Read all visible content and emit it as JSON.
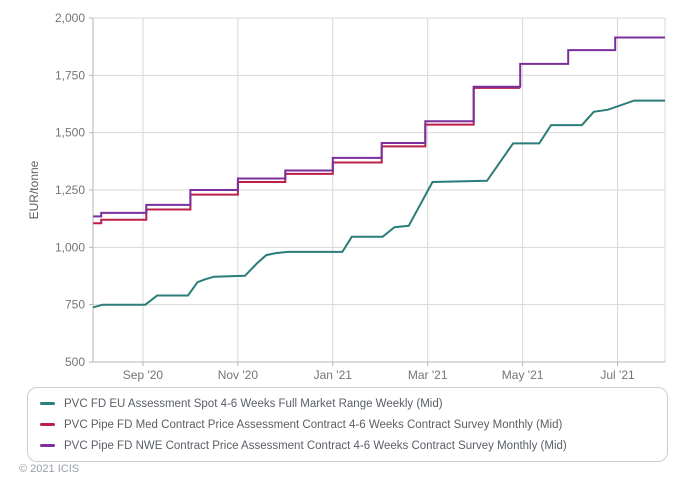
{
  "chart_data": {
    "type": "line",
    "title": "",
    "xlabel": "",
    "ylabel": "EUR/tonne",
    "ylim": [
      500,
      2000
    ],
    "x_domain": [
      -0.05,
      12
    ],
    "x_unit": "months (0 = Aug '20, 12 = Aug '21)",
    "grid": true,
    "legend_position": "bottom",
    "y_ticks": [
      {
        "v": 500,
        "label": "500"
      },
      {
        "v": 750,
        "label": "750"
      },
      {
        "v": 1000,
        "label": "1,000"
      },
      {
        "v": 1250,
        "label": "1,250"
      },
      {
        "v": 1500,
        "label": "1,500"
      },
      {
        "v": 1750,
        "label": "1,750"
      },
      {
        "v": 2000,
        "label": "2,000"
      }
    ],
    "x_ticks": [
      {
        "m": 1,
        "label": "Sep '20"
      },
      {
        "m": 3,
        "label": "Nov '20"
      },
      {
        "m": 5,
        "label": "Jan '21"
      },
      {
        "m": 7,
        "label": "Mar '21"
      },
      {
        "m": 9,
        "label": "May '21"
      },
      {
        "m": 11,
        "label": "Jul '21"
      }
    ],
    "series": [
      {
        "name": "PVC FD EU Assessment Spot 4-6 Weeks Full Market Range Weekly (Mid)",
        "color": "#2a7d78",
        "mode": "line",
        "points": [
          [
            -0.05,
            738
          ],
          [
            0.15,
            750
          ],
          [
            1.05,
            750
          ],
          [
            1.3,
            790
          ],
          [
            1.95,
            790
          ],
          [
            2.15,
            848
          ],
          [
            2.3,
            860
          ],
          [
            2.5,
            872
          ],
          [
            3.15,
            876
          ],
          [
            3.4,
            930
          ],
          [
            3.6,
            966
          ],
          [
            3.8,
            975
          ],
          [
            4.05,
            980
          ],
          [
            5.2,
            980
          ],
          [
            5.4,
            1046
          ],
          [
            6.05,
            1046
          ],
          [
            6.3,
            1088
          ],
          [
            6.6,
            1094
          ],
          [
            7.1,
            1285
          ],
          [
            8.25,
            1290
          ],
          [
            8.8,
            1453
          ],
          [
            9.35,
            1453
          ],
          [
            9.6,
            1533
          ],
          [
            10.25,
            1533
          ],
          [
            10.5,
            1591
          ],
          [
            10.8,
            1600
          ],
          [
            11.35,
            1640
          ],
          [
            12.0,
            1640
          ]
        ]
      },
      {
        "name": "PVC Pipe FD Med Contract Price Assessment Contract 4-6 Weeks Contract Survey Monthly (Mid)",
        "color": "#bb2148",
        "mode": "step",
        "points": [
          [
            -0.05,
            1105
          ],
          [
            0.12,
            1120
          ],
          [
            1.07,
            1165
          ],
          [
            2.0,
            1230
          ],
          [
            3.0,
            1285
          ],
          [
            4.0,
            1320
          ],
          [
            5.0,
            1370
          ],
          [
            6.03,
            1440
          ],
          [
            6.95,
            1535
          ],
          [
            7.97,
            1695
          ],
          [
            8.95,
            1695
          ]
        ]
      },
      {
        "name": "PVC Pipe FD NWE Contract Price Assessment Contract 4-6 Weeks Contract Survey Monthly (Mid)",
        "color": "#7a2f9d",
        "mode": "step",
        "points": [
          [
            -0.05,
            1135
          ],
          [
            0.12,
            1150
          ],
          [
            1.07,
            1185
          ],
          [
            2.0,
            1250
          ],
          [
            3.0,
            1300
          ],
          [
            4.0,
            1335
          ],
          [
            5.0,
            1390
          ],
          [
            6.03,
            1455
          ],
          [
            6.95,
            1550
          ],
          [
            7.97,
            1700
          ],
          [
            8.95,
            1800
          ],
          [
            9.96,
            1860
          ],
          [
            10.95,
            1915
          ],
          [
            12.0,
            1915
          ]
        ]
      }
    ],
    "style": {
      "grid_color": "#d8d8d8",
      "axis_color": "#b5b5b5",
      "tick_text_color": "#757575",
      "ylabel_color": "#5a5f66"
    }
  },
  "legend": {
    "items": [
      {
        "label": "PVC FD EU Assessment Spot 4-6 Weeks Full Market Range Weekly (Mid)",
        "color": "#2a7d78"
      },
      {
        "label": "PVC Pipe FD Med Contract Price Assessment Contract 4-6 Weeks Contract Survey Monthly (Mid)",
        "color": "#bb2148"
      },
      {
        "label": "PVC Pipe FD NWE Contract Price Assessment Contract 4-6 Weeks Contract Survey Monthly (Mid)",
        "color": "#7a2f9d"
      }
    ]
  },
  "footer": {
    "copyright": "© 2021 ICIS"
  }
}
